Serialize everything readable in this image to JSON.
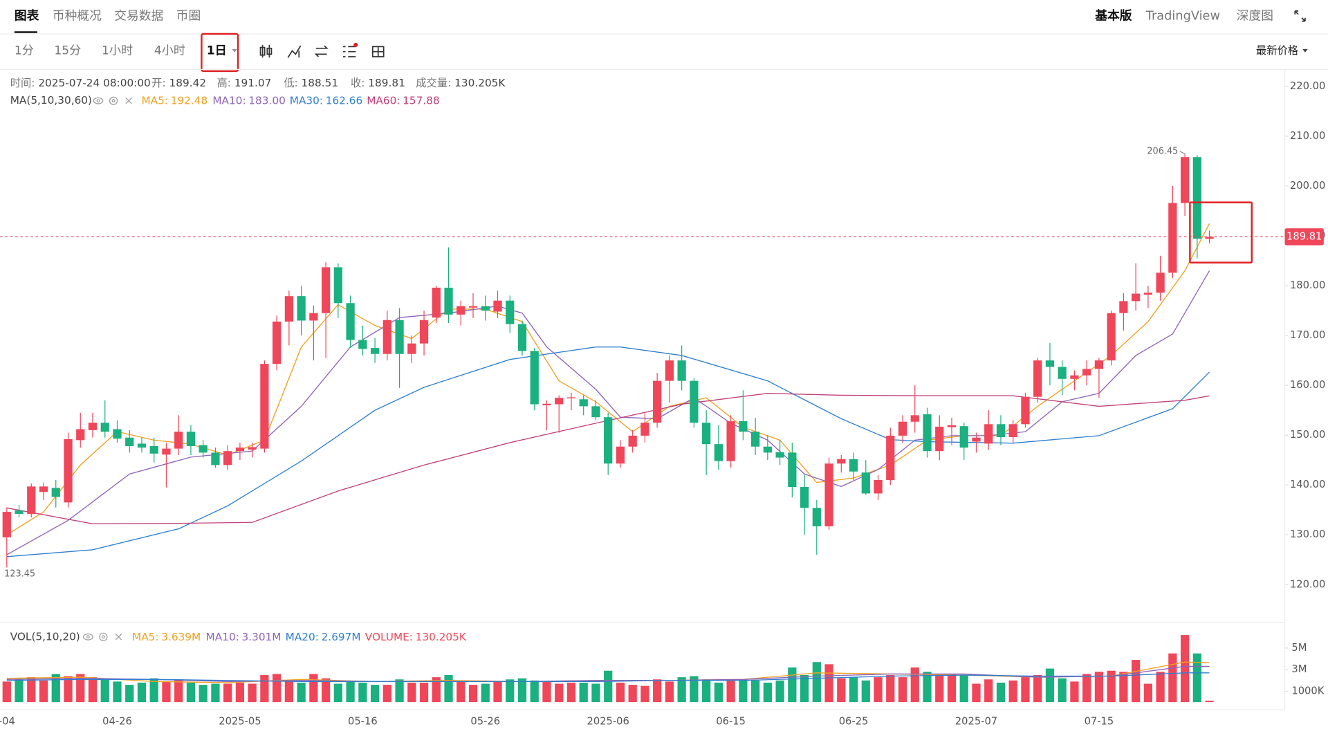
{
  "header": {
    "tabs": [
      "图表",
      "币种概况",
      "交易数据",
      "币圈"
    ],
    "right": [
      "基本版",
      "TradingView",
      "深度图"
    ]
  },
  "toolbar": {
    "intervals": [
      "1分",
      "15分",
      "1小时",
      "4小时",
      "1日"
    ],
    "price_mode": "最新价格"
  },
  "chart_data": {
    "type": "candlestick",
    "info": {
      "time_label": "时间:",
      "time": "2025-07-24 08:00:00",
      "open_label": "开:",
      "high_label": "高:",
      "low_label": "低:",
      "close_label": "收:",
      "volume_label": "成交量:"
    },
    "categories": [
      "-04",
      null,
      null,
      null,
      null,
      null,
      null,
      null,
      null,
      "04-26",
      null,
      null,
      null,
      null,
      null,
      null,
      null,
      null,
      null,
      "2025-05",
      null,
      null,
      null,
      null,
      null,
      null,
      null,
      null,
      null,
      "05-16",
      null,
      null,
      null,
      null,
      null,
      null,
      null,
      null,
      null,
      "05-26",
      null,
      null,
      null,
      null,
      null,
      null,
      null,
      null,
      null,
      "2025-06",
      null,
      null,
      null,
      null,
      null,
      null,
      null,
      null,
      null,
      "06-15",
      null,
      null,
      null,
      null,
      null,
      null,
      null,
      null,
      null,
      "06-25",
      null,
      null,
      null,
      null,
      null,
      null,
      null,
      null,
      null,
      "2025-07",
      null,
      null,
      null,
      null,
      null,
      null,
      null,
      null,
      null,
      "07-15",
      null,
      null,
      null,
      null,
      null,
      null,
      null,
      null,
      null
    ],
    "open": [
      129.5,
      134.9,
      134.2,
      138.6,
      139.4,
      136.5,
      149,
      151,
      152.5,
      151.2,
      149.5,
      148.3,
      147.8,
      146.1,
      147.3,
      150.7,
      148,
      146.5,
      144,
      146.8,
      147.1,
      147.3,
      164.3,
      172.8,
      177.9,
      173,
      174.5,
      183.7,
      176.5,
      169.1,
      167.5,
      166.3,
      173.1,
      166.3,
      168.4,
      173.6,
      179.6,
      174.2,
      175.6,
      175.9,
      174.8,
      177,
      172.3,
      166.9,
      156,
      156.2,
      157.4,
      157.2,
      155.8,
      153.6,
      144.3,
      147.7,
      149.9,
      152.5,
      160.9,
      165,
      160.9,
      152.5,
      148.2,
      144.8,
      152.8,
      150.7,
      147.7,
      146.6,
      146.5,
      139.6,
      135.4,
      131.7,
      144.3,
      145.2,
      142.5,
      138.3,
      141,
      149.9,
      152.7,
      154.2,
      146.8,
      151.6,
      151.8,
      148.7,
      148.3,
      152.2,
      149.6,
      152.2,
      157.7,
      165,
      163.7,
      161.3,
      162,
      163.3,
      165,
      174.5,
      176.9,
      178.2,
      178.6,
      182.6,
      196.6,
      205.8,
      189.42
    ],
    "high": [
      135.5,
      136,
      140.3,
      140.5,
      141,
      150.5,
      154.5,
      154.5,
      157,
      153,
      151,
      149.5,
      149.5,
      148.5,
      154,
      152,
      149,
      147.5,
      148,
      148.5,
      148.5,
      165,
      174,
      179,
      180,
      176,
      184.7,
      184.5,
      178,
      172,
      169.5,
      175,
      175.5,
      170,
      175,
      180,
      187.7,
      177,
      178.5,
      178,
      179,
      178,
      173,
      167.5,
      157,
      158,
      158.5,
      158,
      157,
      154.5,
      149,
      151,
      154.5,
      162.5,
      166,
      168,
      161.5,
      155,
      152,
      154,
      159,
      153.5,
      150,
      149,
      148.5,
      142,
      137,
      145.5,
      146,
      146.5,
      145,
      142,
      151.5,
      154,
      160,
      155.5,
      154,
      153.5,
      152.5,
      150.5,
      155,
      154,
      153,
      158.5,
      165.5,
      168.5,
      165,
      163,
      165,
      165.5,
      175,
      178.5,
      184.5,
      180,
      186,
      200,
      206.45,
      206.2,
      191.07
    ],
    "low": [
      123.45,
      133.5,
      133.5,
      137,
      135.5,
      135.5,
      147.5,
      149.5,
      149.5,
      148.5,
      146.5,
      146.5,
      144.5,
      139.5,
      146,
      146,
      145.5,
      143.5,
      143,
      145,
      145.5,
      146.5,
      163,
      168,
      170,
      165,
      165.5,
      173.5,
      167.5,
      166,
      164.5,
      165,
      159.5,
      164.5,
      166,
      172.5,
      172.5,
      172,
      173.5,
      173,
      173.5,
      170.5,
      166,
      155,
      151,
      150.5,
      155,
      154,
      153,
      142,
      143.5,
      146.5,
      148.5,
      151.5,
      156.5,
      159,
      151.5,
      142,
      143,
      143.5,
      149,
      146,
      145,
      144,
      137.5,
      130,
      126,
      131,
      142.5,
      141,
      138,
      137,
      140,
      148.5,
      150.5,
      145.5,
      145,
      148,
      145,
      146.5,
      147,
      148,
      148.5,
      151.5,
      156.5,
      160,
      158,
      159,
      160,
      157.5,
      164,
      171,
      175,
      175.5,
      177,
      181.5,
      194,
      185.5,
      188.51
    ],
    "close": [
      134.6,
      134.2,
      139.7,
      139.7,
      137.6,
      149.2,
      151.2,
      152.5,
      150.7,
      149.3,
      147.8,
      147.5,
      146.3,
      147.3,
      150.7,
      147.8,
      146.5,
      144,
      146.8,
      147.5,
      147.6,
      164.3,
      172.8,
      177.9,
      173,
      174.5,
      183.7,
      176.5,
      169.1,
      167.3,
      166.3,
      173.1,
      166.3,
      168.4,
      173.1,
      179.6,
      174.2,
      175.9,
      175.9,
      175,
      177,
      172.3,
      166.9,
      156.2,
      156.3,
      157.5,
      157.6,
      155.8,
      153.6,
      144.3,
      147.7,
      149.9,
      152.5,
      160.9,
      165,
      160.9,
      152.5,
      148.2,
      144.8,
      152.8,
      150.7,
      147.7,
      146.5,
      145.5,
      139.6,
      135.4,
      131.7,
      144.3,
      145.2,
      142.7,
      138.3,
      141,
      149.9,
      152.7,
      154,
      146.8,
      151.7,
      152,
      147.5,
      149.5,
      152.2,
      149.6,
      152.2,
      157.7,
      165,
      163.7,
      161.3,
      162,
      163.3,
      165,
      174.5,
      176.9,
      178.4,
      178.6,
      182.6,
      196.6,
      205.8,
      189.42,
      189.81
    ],
    "up_color": "#f0465a",
    "down_color": "#1bb07f",
    "ylim": [
      112.4,
      223.4
    ],
    "yticks": [
      {
        "value": 220,
        "label": "220.00"
      },
      {
        "value": 210,
        "label": "210.00"
      },
      {
        "value": 200,
        "label": "200.00"
      },
      {
        "value": 190,
        "label": "190.00"
      },
      {
        "value": 180,
        "label": "180.00"
      },
      {
        "value": 170,
        "label": "170.00"
      },
      {
        "value": 160,
        "label": "160.00"
      },
      {
        "value": 150,
        "label": "150.00"
      },
      {
        "value": 140,
        "label": "140.00"
      },
      {
        "value": 130,
        "label": "130.00"
      },
      {
        "value": 120,
        "label": "120.00"
      }
    ],
    "ma_title": "MA(5,10,30,60)",
    "ma_series": [
      {
        "name": "MA5:",
        "color": "#f0a020",
        "x": [
          0,
          3,
          6,
          9,
          12,
          15,
          18,
          21,
          24,
          27,
          30,
          33,
          36,
          39,
          42,
          45,
          48,
          51,
          54,
          57,
          60,
          63,
          66,
          69,
          72,
          75,
          78,
          81,
          84,
          87,
          90,
          93,
          96,
          98
        ],
        "values": [
          130,
          134.6,
          144,
          150.7,
          149,
          148.2,
          146,
          149,
          167.7,
          176.2,
          172,
          169.4,
          175.3,
          175.3,
          172.8,
          160.9,
          156.7,
          150.7,
          155.8,
          157.5,
          151.6,
          149,
          140.5,
          141.4,
          144,
          149,
          149.9,
          149.9,
          155.8,
          160.9,
          166,
          172.8,
          183,
          192.48
        ]
      },
      {
        "name": "MA10:",
        "color": "#8e63b8",
        "x": [
          0,
          5,
          10,
          15,
          20,
          24,
          28,
          32,
          36,
          40,
          42,
          44,
          48,
          50,
          53,
          56,
          59,
          62,
          65,
          68,
          71,
          74,
          77,
          80,
          83,
          86,
          89,
          92,
          95,
          98
        ],
        "values": [
          126,
          132.9,
          142.2,
          145.6,
          146.8,
          155.8,
          167.7,
          173.6,
          174.5,
          175.9,
          174.5,
          167.7,
          159.2,
          153.6,
          153.3,
          157.5,
          152.4,
          149,
          142.2,
          139.7,
          143.1,
          149,
          149.9,
          149.9,
          150.7,
          156.7,
          158.4,
          166,
          170.3,
          183
        ],
        "value_labels": [
          null,
          null,
          null,
          null,
          null,
          null,
          null,
          null,
          null,
          null,
          null,
          null,
          null,
          null,
          null,
          null,
          null,
          null,
          null,
          null,
          null,
          null,
          null,
          null,
          null,
          null,
          null,
          null,
          null,
          "183.00"
        ]
      },
      {
        "name": "MA30:",
        "color": "#2f7fd1",
        "x": [
          0,
          7,
          14,
          18,
          24,
          30,
          34,
          41,
          48,
          50,
          55,
          62,
          68,
          72,
          75,
          82,
          89,
          95,
          98
        ],
        "values": [
          125.6,
          127,
          131.2,
          135.8,
          144.8,
          155,
          159.6,
          165.2,
          167.7,
          167.7,
          166,
          160.9,
          153.3,
          149.1,
          148.7,
          148.4,
          149.9,
          155.3,
          162.66
        ]
      },
      {
        "name": "MA60:",
        "color": "#c2407a",
        "x": [
          0,
          7,
          14,
          20,
          27,
          34,
          41,
          48,
          55,
          62,
          68,
          75,
          82,
          89,
          96,
          98
        ],
        "values": [
          135.4,
          132.2,
          132.3,
          132.5,
          138.8,
          144,
          148.5,
          152.4,
          156.2,
          158.4,
          158,
          157.9,
          157.9,
          155.8,
          157,
          157.88
        ]
      }
    ],
    "volume": {
      "title": "VOL(5,10,20)",
      "name": "VOLUME:",
      "values": [
        1.9,
        2.1,
        2.3,
        2.0,
        2.6,
        2.4,
        2.6,
        2.3,
        2.2,
        1.9,
        1.6,
        1.8,
        2.2,
        1.9,
        2.1,
        1.8,
        1.6,
        1.7,
        1.7,
        1.8,
        1.7,
        2.5,
        2.6,
        2.0,
        1.8,
        2.6,
        2.2,
        1.7,
        1.9,
        1.8,
        1.6,
        1.6,
        2.1,
        1.8,
        1.8,
        2.3,
        2.5,
        1.9,
        1.6,
        1.7,
        1.9,
        2.1,
        2.2,
        2.0,
        1.9,
        1.7,
        1.8,
        1.8,
        1.7,
        2.9,
        1.8,
        1.6,
        1.5,
        2.1,
        1.9,
        2.3,
        2.4,
        2.1,
        1.8,
        2.1,
        2.1,
        2.0,
        1.8,
        2.0,
        3.2,
        2.5,
        3.7,
        3.5,
        2.2,
        2.3,
        2.0,
        2.3,
        2.5,
        2.3,
        3.2,
        2.8,
        2.5,
        2.6,
        2.5,
        1.7,
        2.1,
        1.8,
        2.0,
        2.4,
        2.5,
        3.1,
        2.2,
        1.9,
        2.6,
        2.8,
        2.9,
        2.8,
        3.9,
        1.7,
        2.8,
        4.5,
        6.2,
        4.5,
        0.130205
      ],
      "value_labels": [
        null,
        null,
        null,
        null,
        null,
        null,
        null,
        null,
        null,
        null,
        null,
        null,
        null,
        null,
        null,
        null,
        null,
        null,
        null,
        null,
        null,
        null,
        null,
        null,
        null,
        null,
        null,
        null,
        null,
        null,
        null,
        null,
        null,
        null,
        null,
        null,
        null,
        null,
        null,
        null,
        null,
        null,
        null,
        null,
        null,
        null,
        null,
        null,
        null,
        null,
        null,
        null,
        null,
        null,
        null,
        null,
        null,
        null,
        null,
        null,
        null,
        null,
        null,
        null,
        null,
        null,
        null,
        null,
        null,
        null,
        null,
        null,
        null,
        null,
        null,
        null,
        null,
        null,
        null,
        null,
        null,
        null,
        null,
        null,
        null,
        null,
        null,
        null,
        null,
        null,
        null,
        null,
        null,
        null,
        null,
        null,
        null,
        null,
        "130.205K"
      ],
      "ylim": [
        0,
        7.2
      ],
      "yticks": [
        {
          "value": 5,
          "label": "5M"
        },
        {
          "value": 3,
          "label": "3M"
        },
        {
          "value": 1,
          "label": "1000K"
        }
      ],
      "ma_series": [
        {
          "name": "MA5:",
          "color": "#f0a020",
          "x": [
            0,
            6,
            12,
            18,
            24,
            30,
            36,
            42,
            48,
            54,
            60,
            66,
            72,
            78,
            84,
            90,
            96,
            98
          ],
          "values": [
            2.2,
            2.3,
            1.9,
            1.8,
            2.1,
            1.9,
            2.0,
            1.9,
            2.0,
            2.0,
            2.1,
            2.7,
            2.6,
            2.5,
            2.3,
            2.4,
            3.7,
            3.639
          ],
          "value_labels": [
            null,
            null,
            null,
            null,
            null,
            null,
            null,
            null,
            null,
            null,
            null,
            null,
            null,
            null,
            null,
            null,
            null,
            "3.639M"
          ]
        },
        {
          "name": "MA10:",
          "color": "#8e63b8",
          "x": [
            0,
            6,
            12,
            18,
            24,
            30,
            36,
            42,
            48,
            54,
            60,
            66,
            72,
            78,
            84,
            90,
            96,
            98
          ],
          "values": [
            2.1,
            2.2,
            2.1,
            1.9,
            2.0,
            1.9,
            1.9,
            1.9,
            2.0,
            2.0,
            2.1,
            2.4,
            2.6,
            2.6,
            2.3,
            2.4,
            3.3,
            3.301
          ],
          "value_labels": [
            null,
            null,
            null,
            null,
            null,
            null,
            null,
            null,
            null,
            null,
            null,
            null,
            null,
            null,
            null,
            null,
            null,
            "3.301M"
          ]
        },
        {
          "name": "MA20:",
          "color": "#2f7fd1",
          "x": [
            0,
            6,
            12,
            18,
            24,
            30,
            36,
            42,
            48,
            54,
            60,
            66,
            72,
            78,
            84,
            90,
            96,
            98
          ],
          "values": [
            2.0,
            2.1,
            2.1,
            2.0,
            1.9,
            1.9,
            1.9,
            1.9,
            1.9,
            2.0,
            2.0,
            2.2,
            2.4,
            2.5,
            2.4,
            2.4,
            2.7,
            2.697
          ],
          "value_labels": [
            null,
            null,
            null,
            null,
            null,
            null,
            null,
            null,
            null,
            null,
            null,
            null,
            null,
            null,
            null,
            null,
            null,
            "2.697M"
          ]
        }
      ]
    }
  }
}
